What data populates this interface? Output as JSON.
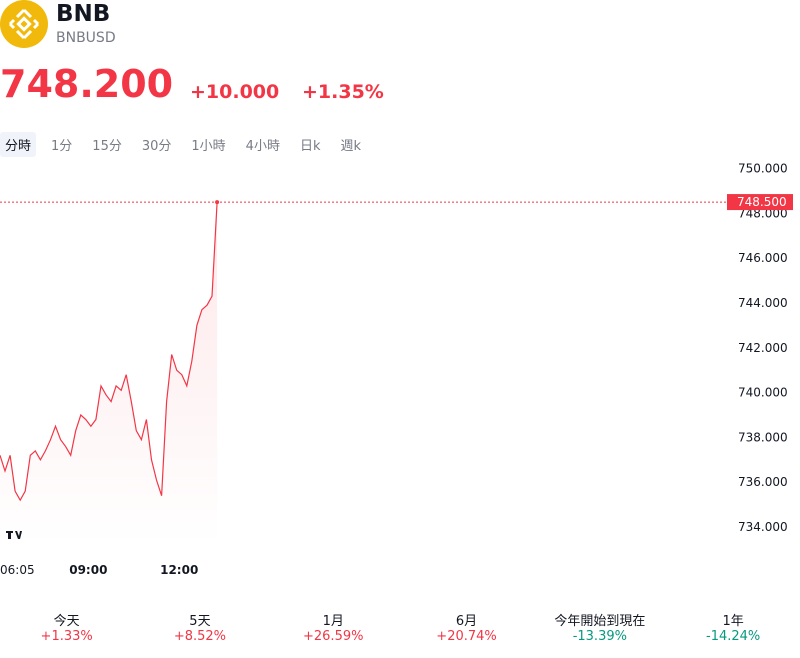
{
  "header": {
    "symbol": "BNB",
    "ticker": "BNBUSD",
    "price": "748.200",
    "change": "+10.000",
    "change_percent": "+1.35%"
  },
  "tabs": [
    "分時",
    "1分",
    "15分",
    "30分",
    "1小時",
    "4小時",
    "日k",
    "週k"
  ],
  "chart_data": {
    "type": "line",
    "x": [
      "06:05",
      "06:15",
      "06:25",
      "06:35",
      "06:45",
      "06:55",
      "07:05",
      "07:15",
      "07:25",
      "07:35",
      "07:45",
      "07:55",
      "08:05",
      "08:15",
      "08:25",
      "08:35",
      "08:45",
      "08:55",
      "09:05",
      "09:15",
      "09:25",
      "09:35",
      "09:45",
      "09:55",
      "10:05",
      "10:15",
      "10:25",
      "10:35",
      "10:45",
      "10:55",
      "11:05",
      "11:15",
      "11:25",
      "11:35",
      "11:45",
      "11:55",
      "12:05",
      "12:15",
      "12:25",
      "12:35",
      "12:45",
      "12:55",
      "13:05",
      "13:15"
    ],
    "series": [
      {
        "name": "BNBUSD",
        "color": "#f23645",
        "values": [
          737.2,
          736.5,
          737.2,
          735.6,
          735.2,
          735.6,
          737.2,
          737.4,
          737.0,
          737.4,
          737.9,
          738.5,
          737.9,
          737.6,
          737.2,
          738.3,
          739.0,
          738.8,
          738.5,
          738.8,
          740.3,
          739.9,
          739.6,
          740.3,
          740.1,
          740.8,
          739.6,
          738.3,
          737.9,
          738.8,
          737.0,
          736.1,
          735.4,
          739.6,
          741.7,
          741.0,
          740.8,
          740.3,
          741.4,
          743.0,
          743.7,
          743.9,
          744.3,
          748.5
        ],
        "value_labels": [
          null,
          null,
          null,
          null,
          null,
          null,
          null,
          null,
          null,
          null,
          null,
          null,
          null,
          null,
          null,
          null,
          null,
          null,
          null,
          null,
          null,
          null,
          null,
          null,
          null,
          null,
          null,
          null,
          null,
          null,
          null,
          null,
          null,
          null,
          null,
          null,
          null,
          null,
          null,
          null,
          null,
          null,
          null,
          "748.500"
        ]
      }
    ],
    "xlim": [
      "06:05",
      "06:05"
    ],
    "xticks": [
      "06:05",
      "09:00",
      "12:00"
    ],
    "ylim": [
      733.2,
      750.6
    ],
    "yticks": [
      {
        "value": 734,
        "label": "734.000"
      },
      {
        "value": 736,
        "label": "736.000"
      },
      {
        "value": 738,
        "label": "738.000"
      },
      {
        "value": 740,
        "label": "740.000"
      },
      {
        "value": 742,
        "label": "742.000"
      },
      {
        "value": 744,
        "label": "744.000"
      },
      {
        "value": 746,
        "label": "746.000"
      },
      {
        "value": 748,
        "label": "748.000"
      },
      {
        "value": 750,
        "label": "750.000"
      }
    ]
  },
  "periods": [
    {
      "label": "今天",
      "change": "+1.33%"
    },
    {
      "label": "5天",
      "change": "+8.52%"
    },
    {
      "label": "1月",
      "change": "+26.59%"
    },
    {
      "label": "6月",
      "change": "+20.74%"
    },
    {
      "label": "今年開始到現在",
      "change": "-13.39%"
    },
    {
      "label": "1年",
      "change": "-14.24%"
    }
  ]
}
